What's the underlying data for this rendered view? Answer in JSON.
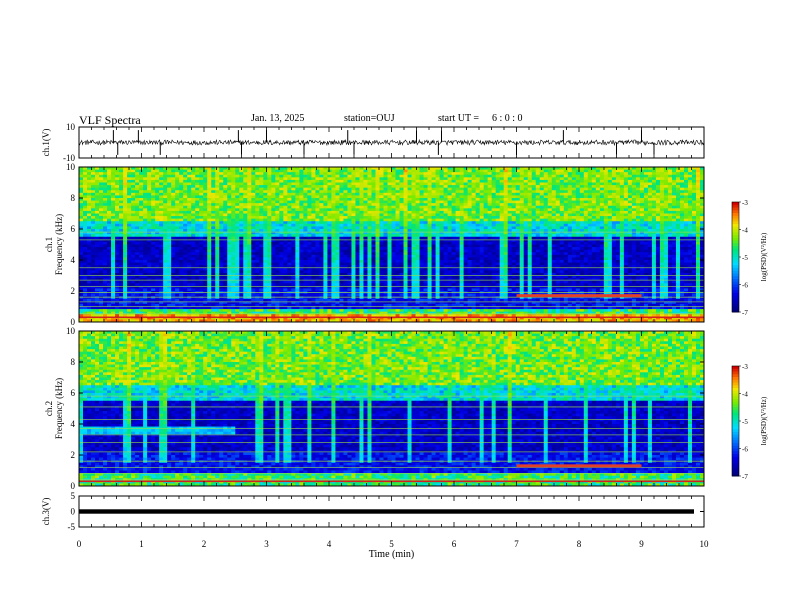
{
  "header": {
    "title": "VLF Spectra",
    "date": "Jan. 13, 2025",
    "station": "station=OUJ",
    "start_label": "start UT =",
    "start_time": "6 : 0 : 0"
  },
  "chart_data": [
    {
      "type": "line",
      "panel": "ch1-waveform",
      "ylabel": "ch.1(V)",
      "ylim": [
        -10,
        10
      ],
      "yticks": [
        "10",
        "-10"
      ],
      "xlim": [
        0,
        10
      ],
      "baseline": 0,
      "spikes_min": [
        0.55,
        0.62,
        0.95,
        1.3,
        2.55,
        2.6,
        3.0,
        3.6,
        4.3,
        4.4,
        5.4,
        5.75,
        5.8,
        7.0,
        7.75,
        8.6,
        9.0,
        9.2
      ]
    },
    {
      "type": "heatmap",
      "panel": "ch1-spectrogram",
      "ylabel": "Frequency (kHz)",
      "channel_label": "ch.1",
      "ylim": [
        0,
        10
      ],
      "yticks": [
        "0",
        "2",
        "4",
        "6",
        "8",
        "10"
      ],
      "xlim": [
        0,
        10
      ],
      "description_units": "log(PSD) (V^2/Hz)",
      "colorbar": {
        "label": "log(PSD)(V²/Hz)",
        "range": [
          -7,
          -3
        ],
        "ticks": [
          "-3",
          "-4",
          "-5",
          "-6",
          "-7"
        ]
      }
    },
    {
      "type": "heatmap",
      "panel": "ch2-spectrogram",
      "ylabel": "Frequency (kHz)",
      "channel_label": "ch.2",
      "ylim": [
        0,
        10
      ],
      "yticks": [
        "0",
        "2",
        "4",
        "6",
        "8",
        "10"
      ],
      "xlim": [
        0,
        10
      ],
      "colorbar": {
        "label": "log(PSD)(V²/Hz)",
        "range": [
          -7,
          -3
        ],
        "ticks": [
          "-3",
          "-4",
          "-5",
          "-6",
          "-7"
        ]
      }
    },
    {
      "type": "line",
      "panel": "ch3-waveform",
      "ylabel": "ch.3(V)",
      "ylim": [
        -5,
        5
      ],
      "yticks": [
        "5",
        "0",
        "-5"
      ],
      "xlim": [
        0,
        10
      ],
      "baseline": 0
    }
  ],
  "xaxis": {
    "label": "Time (min)",
    "ticks": [
      "0",
      "1",
      "2",
      "3",
      "4",
      "5",
      "6",
      "7",
      "8",
      "9",
      "10"
    ]
  },
  "colors": {
    "spectrogram_low": "#00007a",
    "spectrogram_mid": "#00d0ff",
    "spectrogram_high": "#e00000",
    "trace": "#000000"
  }
}
